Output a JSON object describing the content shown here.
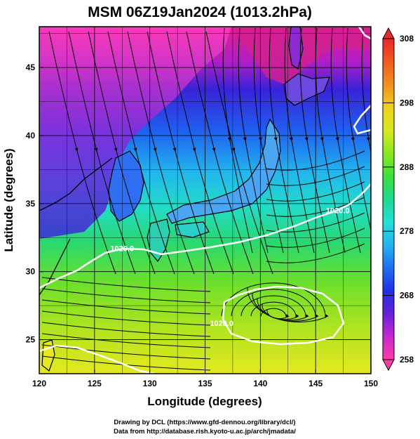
{
  "title": "MSM 06Z19Jan2024 (1013.2hPa)",
  "chart_data": {
    "type": "heatmap",
    "xlabel": "Longitude (degrees)",
    "ylabel": "Latitude  (degrees)",
    "xlim": [
      120,
      150
    ],
    "ylim": [
      22.5,
      48
    ],
    "xticks": [
      120,
      125,
      130,
      135,
      140,
      145,
      150
    ],
    "yticks": [
      25,
      30,
      35,
      40,
      45
    ],
    "grid": true,
    "colorbar": {
      "min": 258,
      "max": 308,
      "ticks": [
        258,
        268,
        278,
        288,
        298,
        308
      ],
      "colors": [
        "#ff3ea5",
        "#c828d2",
        "#6a1fd8",
        "#1f2fe8",
        "#1f6ff0",
        "#22b4f0",
        "#22e0d8",
        "#1fd890",
        "#3ce03c",
        "#8be81f",
        "#d8e81f",
        "#f0d01f",
        "#f09020",
        "#f05a20",
        "#e82a2a"
      ]
    },
    "contours": [
      {
        "label": "1020.0",
        "lon": 127.5,
        "lat": 31.5
      },
      {
        "label": "1020.0",
        "lon": 147.0,
        "lat": 34.3
      },
      {
        "label": "1020.0",
        "lon": 136.5,
        "lat": 26.0
      }
    ]
  },
  "credits": {
    "line1": "Drawing by DCL (https://www.gfd-dennou.org/library/dcl/)",
    "line2": "Data from http://database.rish.kyoto-u.ac.jp/arch/jmadata/"
  }
}
